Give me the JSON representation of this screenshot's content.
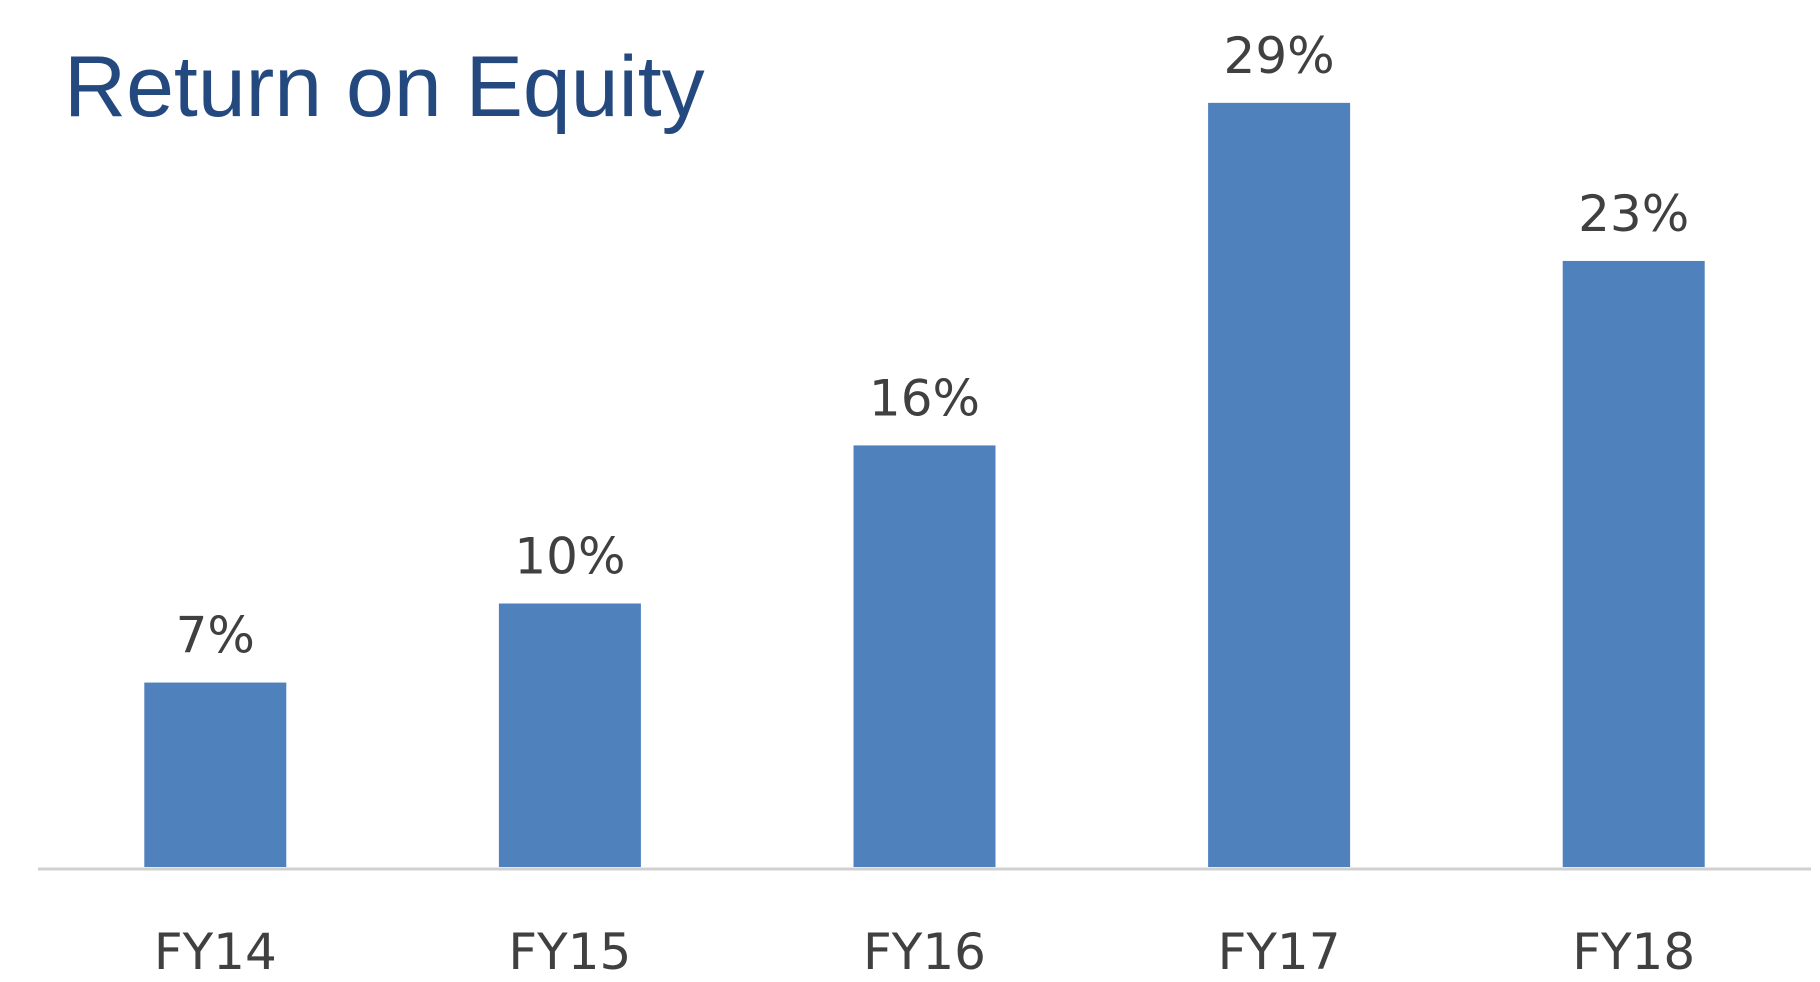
{
  "chart_data": {
    "type": "bar",
    "title": "Return on Equity",
    "categories": [
      "FY14",
      "FY15",
      "FY16",
      "FY17",
      "FY18"
    ],
    "values": [
      7,
      10,
      16,
      29,
      23
    ],
    "value_labels": [
      "7%",
      "10%",
      "16%",
      "29%",
      "23%"
    ],
    "color": "#4f81bd"
  }
}
